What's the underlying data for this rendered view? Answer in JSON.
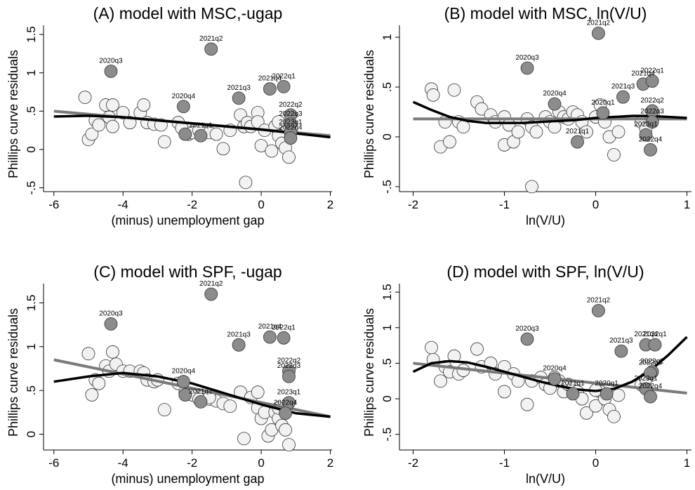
{
  "chart_data": [
    {
      "panel": "A",
      "type": "scatter",
      "title": "(A) model with MSC,-ugap",
      "xlabel": "(minus) unemployment gap",
      "ylabel": "Phillips curve residuals",
      "xlim": [
        -6.3,
        2.05
      ],
      "ylim": [
        -0.55,
        1.62
      ],
      "xticks": [
        -6,
        -4,
        -2,
        0,
        2
      ],
      "xtick_labels": [
        "-6",
        "-4",
        "-2",
        "0",
        "2"
      ],
      "yticks": [
        -0.5,
        0,
        0.5,
        1,
        1.5
      ],
      "ytick_labels": [
        "-.5",
        "0",
        ".5",
        "1",
        "1.5"
      ],
      "grid": false,
      "points_light": [
        [
          -5.1,
          0.68
        ],
        [
          -5.0,
          0.13
        ],
        [
          -4.9,
          0.2
        ],
        [
          -4.8,
          0.38
        ],
        [
          -4.7,
          0.32
        ],
        [
          -4.5,
          0.58
        ],
        [
          -4.4,
          0.42
        ],
        [
          -4.3,
          0.58
        ],
        [
          -4.3,
          0.3
        ],
        [
          -4.0,
          0.48
        ],
        [
          -3.8,
          0.35
        ],
        [
          -3.5,
          0.48
        ],
        [
          -3.4,
          0.58
        ],
        [
          -3.3,
          0.35
        ],
        [
          -3.1,
          0.33
        ],
        [
          -2.9,
          0.32
        ],
        [
          -2.8,
          0.1
        ],
        [
          -2.4,
          0.35
        ],
        [
          -2.3,
          0.28
        ],
        [
          -2.1,
          0.2
        ],
        [
          -2.0,
          0.22
        ],
        [
          -1.8,
          0.25
        ],
        [
          -1.5,
          0.22
        ],
        [
          -1.3,
          0.2
        ],
        [
          -1.1,
          0.01
        ],
        [
          -0.9,
          0.25
        ],
        [
          -0.6,
          0.45
        ],
        [
          -0.5,
          0.3
        ],
        [
          -0.4,
          0.35
        ],
        [
          -0.3,
          0.3
        ],
        [
          -0.1,
          0.48
        ],
        [
          -0.1,
          0.36
        ],
        [
          0.0,
          0.05
        ],
        [
          0.1,
          0.25
        ],
        [
          0.3,
          -0.02
        ],
        [
          0.4,
          0.3
        ],
        [
          0.5,
          0.18
        ],
        [
          0.6,
          0.08
        ],
        [
          0.7,
          0.02
        ],
        [
          0.8,
          -0.1
        ],
        [
          0.5,
          0.36
        ],
        [
          -0.45,
          -0.43
        ]
      ],
      "points_dark": [
        {
          "x": -4.35,
          "y": 1.02,
          "label": "2020q3"
        },
        {
          "x": -2.25,
          "y": 0.56,
          "label": "2020q4"
        },
        {
          "x": -1.45,
          "y": 1.31,
          "label": "2021q2"
        },
        {
          "x": -0.65,
          "y": 0.67,
          "label": "2021q3"
        },
        {
          "x": 0.25,
          "y": 0.79,
          "label": "2021q4"
        },
        {
          "x": 0.65,
          "y": 0.82,
          "label": "2022q1"
        },
        {
          "x": 0.85,
          "y": 0.45,
          "label": "2022q2"
        },
        {
          "x": 0.85,
          "y": 0.33,
          "label": "2022q3"
        },
        {
          "x": 0.85,
          "y": 0.22,
          "label": "2023q1"
        },
        {
          "x": 0.85,
          "y": 0.15,
          "label": "2022q4"
        },
        {
          "x": -1.75,
          "y": 0.18,
          "label": "2021q1"
        },
        {
          "x": -2.2,
          "y": 0.2,
          "label": ""
        }
      ],
      "fit_linear": [
        [
          -6.0,
          0.5
        ],
        [
          2.0,
          0.18
        ]
      ],
      "fit_curve": [
        [
          -6.0,
          0.43
        ],
        [
          -5.0,
          0.44
        ],
        [
          -4.0,
          0.42
        ],
        [
          -3.0,
          0.38
        ],
        [
          -2.0,
          0.34
        ],
        [
          -1.0,
          0.3
        ],
        [
          0.0,
          0.26
        ],
        [
          1.0,
          0.21
        ],
        [
          2.0,
          0.16
        ]
      ]
    },
    {
      "panel": "B",
      "type": "scatter",
      "title": "(B) model with MSC, ln(V/U)",
      "xlabel": "ln(V/U)",
      "ylabel": "Phillips curve residuals",
      "xlim": [
        -2.15,
        1.05
      ],
      "ylim": [
        -0.55,
        1.12
      ],
      "xticks": [
        -2,
        -1,
        0,
        1
      ],
      "xtick_labels": [
        "-2",
        "-1",
        "0",
        "1"
      ],
      "yticks": [
        -0.5,
        0,
        0.5,
        1
      ],
      "ytick_labels": [
        "-.5",
        "0",
        ".5",
        "1"
      ],
      "grid": false,
      "points_light": [
        [
          -1.8,
          0.48
        ],
        [
          -1.78,
          0.42
        ],
        [
          -1.7,
          -0.1
        ],
        [
          -1.65,
          0.15
        ],
        [
          -1.6,
          -0.05
        ],
        [
          -1.55,
          0.47
        ],
        [
          -1.5,
          0.15
        ],
        [
          -1.45,
          0.1
        ],
        [
          -1.3,
          0.35
        ],
        [
          -1.25,
          0.28
        ],
        [
          -1.15,
          0.22
        ],
        [
          -1.1,
          0.15
        ],
        [
          -1.0,
          0.2
        ],
        [
          -1.0,
          -0.08
        ],
        [
          -0.95,
          0.12
        ],
        [
          -0.9,
          -0.05
        ],
        [
          -0.85,
          0.05
        ],
        [
          -0.75,
          0.18
        ],
        [
          -0.7,
          0.1
        ],
        [
          -0.65,
          0.05
        ],
        [
          -0.55,
          0.2
        ],
        [
          -0.5,
          0.15
        ],
        [
          -0.45,
          0.1
        ],
        [
          -0.4,
          0.25
        ],
        [
          -0.35,
          0.2
        ],
        [
          -0.3,
          0.18
        ],
        [
          -0.25,
          0.25
        ],
        [
          -0.2,
          0.22
        ],
        [
          -0.15,
          0.15
        ],
        [
          -0.1,
          0.05
        ],
        [
          0.0,
          0.2
        ],
        [
          0.05,
          0.32
        ],
        [
          0.1,
          0.15
        ],
        [
          0.15,
          0.0
        ],
        [
          0.2,
          -0.18
        ],
        [
          0.25,
          0.05
        ],
        [
          0.5,
          0.15
        ],
        [
          0.55,
          0.08
        ],
        [
          -0.7,
          -0.5
        ]
      ],
      "points_dark": [
        {
          "x": -0.75,
          "y": 0.69,
          "label": "2020q3"
        },
        {
          "x": -0.45,
          "y": 0.33,
          "label": "2020q4"
        },
        {
          "x": 0.03,
          "y": 1.04,
          "label": "2021q2"
        },
        {
          "x": 0.3,
          "y": 0.4,
          "label": "2021q3"
        },
        {
          "x": 0.52,
          "y": 0.53,
          "label": "2021q4"
        },
        {
          "x": 0.62,
          "y": 0.56,
          "label": "2022q1"
        },
        {
          "x": 0.62,
          "y": 0.26,
          "label": "2022q2"
        },
        {
          "x": 0.62,
          "y": 0.15,
          "label": "2022q3"
        },
        {
          "x": 0.55,
          "y": 0.02,
          "label": "2023q1"
        },
        {
          "x": 0.6,
          "y": -0.13,
          "label": "2022q4"
        },
        {
          "x": -0.2,
          "y": -0.05,
          "label": "2021q1"
        },
        {
          "x": 0.08,
          "y": 0.24,
          "label": "2020q1"
        }
      ],
      "fit_linear": [
        [
          -2.0,
          0.18
        ],
        [
          1.0,
          0.18
        ]
      ],
      "fit_curve": [
        [
          -2.0,
          0.35
        ],
        [
          -1.8,
          0.27
        ],
        [
          -1.6,
          0.2
        ],
        [
          -1.4,
          0.16
        ],
        [
          -1.2,
          0.14
        ],
        [
          -1.0,
          0.14
        ],
        [
          -0.8,
          0.14
        ],
        [
          -0.6,
          0.15
        ],
        [
          -0.4,
          0.16
        ],
        [
          -0.2,
          0.17
        ],
        [
          0.0,
          0.19
        ],
        [
          0.2,
          0.2
        ],
        [
          0.4,
          0.21
        ],
        [
          0.6,
          0.21
        ],
        [
          0.8,
          0.2
        ],
        [
          1.0,
          0.19
        ]
      ]
    },
    {
      "panel": "C",
      "type": "scatter",
      "title": "(C) model with SPF, -ugap",
      "xlabel": "(minus) unemployment gap",
      "ylabel": "Phillips curve residuals",
      "xlim": [
        -6.3,
        2.05
      ],
      "ylim": [
        -0.18,
        1.72
      ],
      "xticks": [
        -6,
        -4,
        -2,
        0,
        2
      ],
      "xtick_labels": [
        "-6",
        "-4",
        "-2",
        "0",
        "2"
      ],
      "yticks": [
        0,
        0.5,
        1,
        1.5
      ],
      "ytick_labels": [
        "0",
        ".5",
        "1",
        "1.5"
      ],
      "grid": false,
      "points_light": [
        [
          -5.0,
          0.92
        ],
        [
          -4.9,
          0.45
        ],
        [
          -4.8,
          0.62
        ],
        [
          -4.7,
          0.58
        ],
        [
          -4.5,
          0.78
        ],
        [
          -4.4,
          0.72
        ],
        [
          -4.3,
          0.94
        ],
        [
          -4.2,
          0.8
        ],
        [
          -4.0,
          0.72
        ],
        [
          -3.8,
          0.72
        ],
        [
          -3.5,
          0.72
        ],
        [
          -3.4,
          0.7
        ],
        [
          -3.3,
          0.62
        ],
        [
          -3.1,
          0.6
        ],
        [
          -3.0,
          0.62
        ],
        [
          -2.8,
          0.28
        ],
        [
          -2.4,
          0.58
        ],
        [
          -2.2,
          0.48
        ],
        [
          -2.0,
          0.45
        ],
        [
          -1.8,
          0.4
        ],
        [
          -1.5,
          0.4
        ],
        [
          -1.3,
          0.38
        ],
        [
          -1.1,
          0.35
        ],
        [
          -0.9,
          0.32
        ],
        [
          -0.6,
          0.48
        ],
        [
          -0.5,
          -0.05
        ],
        [
          -0.3,
          0.42
        ],
        [
          -0.1,
          0.48
        ],
        [
          -0.1,
          0.3
        ],
        [
          0.0,
          0.18
        ],
        [
          0.1,
          0.25
        ],
        [
          0.2,
          -0.02
        ],
        [
          0.3,
          0.05
        ],
        [
          0.4,
          0.25
        ],
        [
          0.5,
          0.18
        ],
        [
          0.6,
          0.1
        ],
        [
          0.7,
          0.05
        ],
        [
          0.8,
          -0.12
        ],
        [
          0.5,
          0.3
        ],
        [
          -1.5,
          0.42
        ]
      ],
      "points_dark": [
        {
          "x": -4.35,
          "y": 1.26,
          "label": "2020q3"
        },
        {
          "x": -2.25,
          "y": 0.6,
          "label": "2020q4"
        },
        {
          "x": -1.45,
          "y": 1.6,
          "label": "2021q2"
        },
        {
          "x": -0.65,
          "y": 1.02,
          "label": "2021q3"
        },
        {
          "x": 0.25,
          "y": 1.11,
          "label": "2021q4"
        },
        {
          "x": 0.65,
          "y": 1.1,
          "label": "2022q1"
        },
        {
          "x": 0.8,
          "y": 0.72,
          "label": "2022q2"
        },
        {
          "x": 0.8,
          "y": 0.66,
          "label": "2022q3"
        },
        {
          "x": 0.8,
          "y": 0.36,
          "label": "2023q1"
        },
        {
          "x": 0.7,
          "y": 0.24,
          "label": "2022q4"
        },
        {
          "x": -1.75,
          "y": 0.37,
          "label": "2021q1"
        },
        {
          "x": -2.2,
          "y": 0.45,
          "label": ""
        }
      ],
      "fit_linear": [
        [
          -6.0,
          0.85
        ],
        [
          2.0,
          0.2
        ]
      ],
      "fit_curve": [
        [
          -6.0,
          0.6
        ],
        [
          -5.0,
          0.66
        ],
        [
          -4.0,
          0.7
        ],
        [
          -3.0,
          0.66
        ],
        [
          -2.0,
          0.58
        ],
        [
          -1.0,
          0.46
        ],
        [
          0.0,
          0.34
        ],
        [
          1.0,
          0.24
        ],
        [
          2.0,
          0.2
        ]
      ]
    },
    {
      "panel": "D",
      "type": "scatter",
      "title": "(D) model with SPF, ln(V/U)",
      "xlabel": "ln(V/U)",
      "ylabel": "Phillips curve residuals",
      "xlim": [
        -2.15,
        1.05
      ],
      "ylim": [
        -0.72,
        1.62
      ],
      "xticks": [
        -2,
        -1,
        0,
        1
      ],
      "xtick_labels": [
        "-2",
        "-1",
        "0",
        "1"
      ],
      "yticks": [
        -0.5,
        0,
        0.5,
        1,
        1.5
      ],
      "ytick_labels": [
        "-.5",
        "0",
        ".5",
        "1",
        "1.5"
      ],
      "grid": false,
      "points_light": [
        [
          -1.8,
          0.72
        ],
        [
          -1.78,
          0.55
        ],
        [
          -1.7,
          0.25
        ],
        [
          -1.65,
          0.45
        ],
        [
          -1.6,
          0.38
        ],
        [
          -1.55,
          0.6
        ],
        [
          -1.5,
          0.35
        ],
        [
          -1.45,
          0.4
        ],
        [
          -1.3,
          0.7
        ],
        [
          -1.25,
          0.45
        ],
        [
          -1.15,
          0.5
        ],
        [
          -1.1,
          0.35
        ],
        [
          -1.0,
          0.45
        ],
        [
          -1.0,
          0.1
        ],
        [
          -0.9,
          0.35
        ],
        [
          -0.85,
          0.25
        ],
        [
          -0.75,
          -0.08
        ],
        [
          -0.7,
          0.25
        ],
        [
          -0.6,
          0.3
        ],
        [
          -0.55,
          0.2
        ],
        [
          -0.5,
          0.15
        ],
        [
          -0.45,
          0.3
        ],
        [
          -0.4,
          0.25
        ],
        [
          -0.35,
          0.1
        ],
        [
          -0.3,
          0.2
        ],
        [
          -0.25,
          0.15
        ],
        [
          -0.2,
          0.1
        ],
        [
          -0.15,
          0.0
        ],
        [
          -0.1,
          -0.2
        ],
        [
          0.0,
          -0.1
        ],
        [
          0.05,
          0.1
        ],
        [
          0.1,
          0.0
        ],
        [
          0.15,
          -0.15
        ],
        [
          0.2,
          -0.25
        ],
        [
          0.25,
          0.05
        ],
        [
          0.5,
          0.2
        ],
        [
          0.55,
          0.28
        ],
        [
          0.0,
          0.12
        ]
      ],
      "points_dark": [
        {
          "x": -0.75,
          "y": 0.84,
          "label": "2020q3"
        },
        {
          "x": -0.45,
          "y": 0.28,
          "label": "2020q4"
        },
        {
          "x": 0.03,
          "y": 1.24,
          "label": "2021q2"
        },
        {
          "x": 0.28,
          "y": 0.67,
          "label": "2021q3"
        },
        {
          "x": 0.55,
          "y": 0.76,
          "label": "2021q4"
        },
        {
          "x": 0.65,
          "y": 0.76,
          "label": "2022q1"
        },
        {
          "x": 0.62,
          "y": 0.38,
          "label": "2022q2"
        },
        {
          "x": 0.6,
          "y": 0.36,
          "label": "2022q3"
        },
        {
          "x": 0.55,
          "y": 0.14,
          "label": "2023q1"
        },
        {
          "x": 0.6,
          "y": 0.03,
          "label": "2022q4"
        },
        {
          "x": -0.25,
          "y": 0.07,
          "label": "2021q1"
        },
        {
          "x": 0.12,
          "y": 0.07,
          "label": "2020q1"
        }
      ],
      "fit_linear": [
        [
          -2.0,
          0.5
        ],
        [
          1.0,
          0.08
        ]
      ],
      "fit_curve": [
        [
          -2.0,
          0.38
        ],
        [
          -1.8,
          0.5
        ],
        [
          -1.6,
          0.53
        ],
        [
          -1.4,
          0.51
        ],
        [
          -1.2,
          0.45
        ],
        [
          -1.0,
          0.38
        ],
        [
          -0.8,
          0.31
        ],
        [
          -0.6,
          0.24
        ],
        [
          -0.4,
          0.18
        ],
        [
          -0.2,
          0.13
        ],
        [
          0.0,
          0.11
        ],
        [
          0.2,
          0.14
        ],
        [
          0.4,
          0.24
        ],
        [
          0.6,
          0.4
        ],
        [
          0.8,
          0.62
        ],
        [
          1.0,
          0.87
        ]
      ]
    }
  ]
}
